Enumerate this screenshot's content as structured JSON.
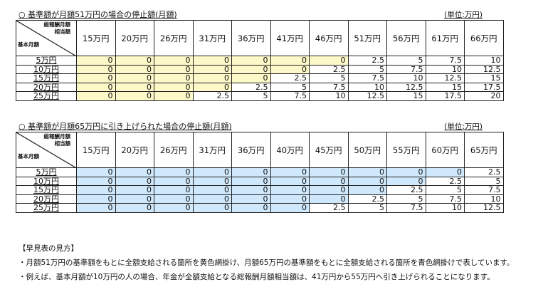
{
  "colors": {
    "yellow_highlight": "#fdf8c8",
    "blue_highlight": "#cfe8fb",
    "border": "#222222"
  },
  "corner": {
    "top_line1": "総報酬月額",
    "top_line2": "相当額",
    "bottom": "基本月額"
  },
  "table1": {
    "title": "○ 基準額が月額51万円の場合の停止額(月額)",
    "unit": "(単位:万円)",
    "columns": [
      "15万円",
      "20万円",
      "26万円",
      "31万円",
      "36万円",
      "41万円",
      "46万円",
      "51万円",
      "56万円",
      "61万円",
      "66万円"
    ],
    "rows": [
      {
        "label": "5万円",
        "values": [
          "0",
          "0",
          "0",
          "0",
          "0",
          "0",
          "0",
          "2.5",
          "5",
          "7.5",
          "10"
        ],
        "yellow": 7
      },
      {
        "label": "10万円",
        "values": [
          "0",
          "0",
          "0",
          "0",
          "0",
          "0",
          "2.5",
          "5",
          "7.5",
          "10",
          "12.5"
        ],
        "yellow": 6
      },
      {
        "label": "15万円",
        "values": [
          "0",
          "0",
          "0",
          "0",
          "0",
          "2.5",
          "5",
          "7.5",
          "10",
          "12.5",
          "15"
        ],
        "yellow": 5
      },
      {
        "label": "20万円",
        "values": [
          "0",
          "0",
          "0",
          "0",
          "2.5",
          "5",
          "7.5",
          "10",
          "12.5",
          "15",
          "17.5"
        ],
        "yellow": 4
      },
      {
        "label": "25万円",
        "values": [
          "0",
          "0",
          "0",
          "2.5",
          "5",
          "7.5",
          "10",
          "12.5",
          "15",
          "17.5",
          "20"
        ],
        "yellow": 3
      }
    ]
  },
  "table2": {
    "title": "○ 基準額が月額65万円に引き上げられた場合の停止額(月額)",
    "unit": "(単位:万円)",
    "columns": [
      "15万円",
      "20万円",
      "26万円",
      "31万円",
      "36万円",
      "40万円",
      "45万円",
      "50万円",
      "55万円",
      "60万円",
      "65万円"
    ],
    "rows": [
      {
        "label": "5万円",
        "values": [
          "0",
          "0",
          "0",
          "0",
          "0",
          "0",
          "0",
          "0",
          "0",
          "0",
          "2.5"
        ],
        "blue": 10
      },
      {
        "label": "10万円",
        "values": [
          "0",
          "0",
          "0",
          "0",
          "0",
          "0",
          "0",
          "0",
          "0",
          "2.5",
          "5"
        ],
        "blue": 9
      },
      {
        "label": "15万円",
        "values": [
          "0",
          "0",
          "0",
          "0",
          "0",
          "0",
          "0",
          "0",
          "2.5",
          "5",
          "7.5"
        ],
        "blue": 8
      },
      {
        "label": "20万円",
        "values": [
          "0",
          "0",
          "0",
          "0",
          "0",
          "0",
          "0",
          "2.5",
          "5",
          "7.5",
          "10"
        ],
        "blue": 7
      },
      {
        "label": "25万円",
        "values": [
          "0",
          "0",
          "0",
          "0",
          "0",
          "0",
          "2.5",
          "5",
          "7.5",
          "10",
          "12.5"
        ],
        "blue": 6
      }
    ]
  },
  "notes": {
    "heading": "【早見表の見方】",
    "lines": [
      "・月額51万円の基準額をもとに全額支給される箇所を黄色網掛け、月額65万円の基準額をもとに全額支給される箇所を青色網掛けで表しています。",
      "・例えば、基本月額が10万円の人の場合、年金が全額支給となる総報酬月額相当額は、41万円から55万円へ引き上げられることになります。"
    ]
  }
}
